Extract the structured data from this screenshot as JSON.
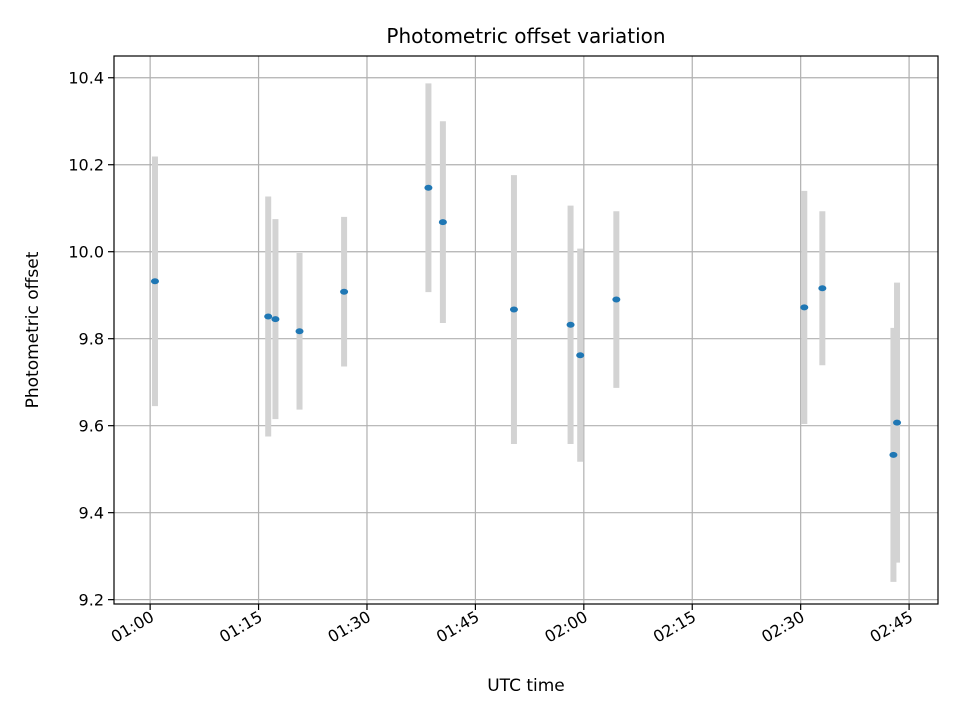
{
  "chart_data": {
    "type": "scatter",
    "title": "Photometric offset variation",
    "xlabel": "UTC time",
    "ylabel": "Photometric offset",
    "xlim": [
      "00:55",
      "02:49"
    ],
    "ylim": [
      9.19,
      10.45
    ],
    "x_ticks": [
      "01:00",
      "01:15",
      "01:30",
      "01:45",
      "02:00",
      "02:15",
      "02:30",
      "02:45"
    ],
    "y_ticks": [
      9.2,
      9.4,
      9.6,
      9.8,
      10.0,
      10.2,
      10.4
    ],
    "grid": true,
    "colors": {
      "point": "#1f77b4",
      "errorbar": "#d3d3d3",
      "grid": "#b0b0b0"
    },
    "points": [
      {
        "x": "01:00:40",
        "y": 9.932,
        "yerr": 0.287
      },
      {
        "x": "01:16:20",
        "y": 9.851,
        "yerr": 0.276
      },
      {
        "x": "01:17:20",
        "y": 9.845,
        "yerr": 0.23
      },
      {
        "x": "01:20:40",
        "y": 9.817,
        "yerr": 0.18
      },
      {
        "x": "01:26:50",
        "y": 9.908,
        "yerr": 0.172
      },
      {
        "x": "01:38:30",
        "y": 10.147,
        "yerr": 0.24
      },
      {
        "x": "01:40:30",
        "y": 10.068,
        "yerr": 0.232
      },
      {
        "x": "01:50:20",
        "y": 9.867,
        "yerr": 0.309
      },
      {
        "x": "01:58:10",
        "y": 9.832,
        "yerr": 0.274
      },
      {
        "x": "01:59:30",
        "y": 9.762,
        "yerr": 0.245
      },
      {
        "x": "02:04:30",
        "y": 9.89,
        "yerr": 0.203
      },
      {
        "x": "02:30:30",
        "y": 9.872,
        "yerr": 0.268
      },
      {
        "x": "02:33:00",
        "y": 9.916,
        "yerr": 0.177
      },
      {
        "x": "02:42:50",
        "y": 9.533,
        "yerr": 0.292
      },
      {
        "x": "02:43:20",
        "y": 9.607,
        "yerr": 0.322
      }
    ]
  }
}
